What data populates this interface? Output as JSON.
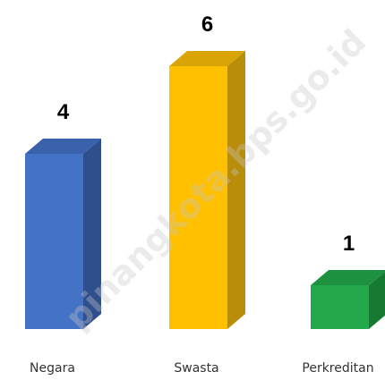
{
  "chart_data": {
    "type": "bar3d",
    "categories": [
      "Negara",
      "Swasta",
      "Perkreditan"
    ],
    "values": [
      4,
      6,
      1
    ],
    "colors": [
      "#4472c4",
      "#ffc000",
      "#23a94b"
    ],
    "side_colors": [
      "#2e4f8c",
      "#b98d0a",
      "#167a33"
    ],
    "top_colors": [
      "#3a62ab",
      "#d9a406",
      "#1d9140"
    ],
    "watermark": "pinangkota.bps.go.id"
  }
}
